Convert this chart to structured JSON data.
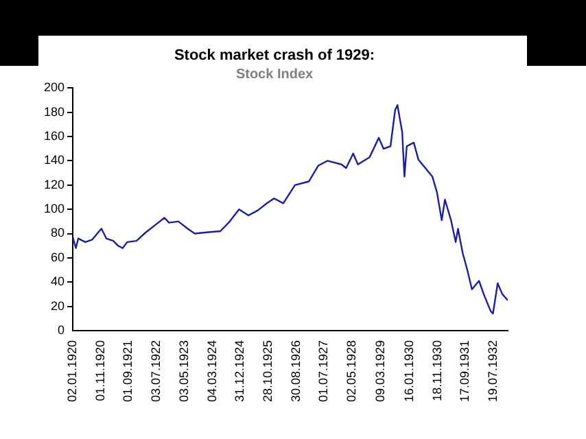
{
  "chart_data": {
    "type": "line",
    "title": "Stock market crash of 1929:",
    "subtitle": "Stock Index",
    "x": [
      "1920-01-02",
      "1920-02-05",
      "1920-03-02",
      "1920-05-17",
      "1920-08-01",
      "1920-10-16",
      "1920-11-10",
      "1921-01-01",
      "1921-03-18",
      "1921-05-08",
      "1921-06-28",
      "1921-08-17",
      "1921-11-26",
      "1922-03-07",
      "1922-06-17",
      "1922-09-26",
      "1922-11-15",
      "1923-02-25",
      "1923-06-07",
      "1923-08-22",
      "1923-12-27",
      "1924-05-27",
      "1924-09-06",
      "1924-12-16",
      "1925-03-28",
      "1925-07-07",
      "1925-10-16",
      "1926-01-01",
      "1926-04-12",
      "1926-08-17",
      "1927-01-16",
      "1927-04-27",
      "1927-08-06",
      "1928-01-06",
      "1928-02-25",
      "1928-05-12",
      "1928-07-02",
      "1928-11-06",
      "1929-02-15",
      "1929-04-07",
      "1929-06-22",
      "1929-08-12",
      "1929-09-06",
      "1929-10-01",
      "1929-10-27",
      "1929-11-21",
      "1929-12-16",
      "1930-03-03",
      "1930-04-22",
      "1930-07-07",
      "1930-09-21",
      "1930-11-10",
      "1931-01-01",
      "1931-02-05",
      "1931-04-12",
      "1931-06-02",
      "1931-06-27",
      "1931-08-17",
      "1931-10-06",
      "1931-11-26",
      "1932-02-11",
      "1932-04-02",
      "1932-06-17",
      "1932-07-12",
      "1932-09-01",
      "1932-10-22",
      "1932-12-20"
    ],
    "series": [
      {
        "color": "#1c1caa",
        "values": [
          77,
          68,
          76,
          73,
          75,
          82,
          84,
          76,
          74,
          70,
          68,
          73,
          74,
          81,
          87,
          93,
          89,
          90,
          84,
          80,
          81,
          82,
          90,
          100,
          95,
          99,
          105,
          109,
          105,
          120,
          123,
          136,
          140,
          137,
          134,
          146,
          137,
          143,
          159,
          150,
          152,
          182,
          186,
          175,
          164,
          127,
          152,
          155,
          141,
          134,
          127,
          114,
          91,
          108,
          91,
          73,
          84,
          64,
          50,
          34,
          41,
          30,
          16,
          14,
          39,
          30,
          25
        ]
      }
    ],
    "xlim": [
      "1920-01-02",
      "1932-12-20"
    ],
    "xticks": [
      {
        "value": "1920-01-02",
        "label": "02.01.1920"
      },
      {
        "value": "1920-11-01",
        "label": "01.11.1920"
      },
      {
        "value": "1921-09-01",
        "label": "01.09.1921"
      },
      {
        "value": "1922-07-03",
        "label": "03.07.1922"
      },
      {
        "value": "1923-05-03",
        "label": "03.05.1923"
      },
      {
        "value": "1924-03-04",
        "label": "04.03.1924"
      },
      {
        "value": "1924-12-31",
        "label": "31.12.1924"
      },
      {
        "value": "1925-10-28",
        "label": "28.10.1925"
      },
      {
        "value": "1926-08-30",
        "label": "30.08.1926"
      },
      {
        "value": "1927-07-01",
        "label": "01.07.1927"
      },
      {
        "value": "1928-05-02",
        "label": "02.05.1928"
      },
      {
        "value": "1929-03-09",
        "label": "09.03.1929"
      },
      {
        "value": "1930-01-16",
        "label": "16.01.1930"
      },
      {
        "value": "1930-11-18",
        "label": "18.11.1930"
      },
      {
        "value": "1931-09-17",
        "label": "17.09.1931"
      },
      {
        "value": "1932-07-19",
        "label": "19.07.1932"
      }
    ],
    "ylim": [
      0,
      200
    ],
    "yticks": [
      0,
      20,
      40,
      60,
      80,
      100,
      120,
      140,
      160,
      180,
      200
    ],
    "grid": false,
    "legend": false,
    "marker": "none",
    "line_style": "solid"
  }
}
